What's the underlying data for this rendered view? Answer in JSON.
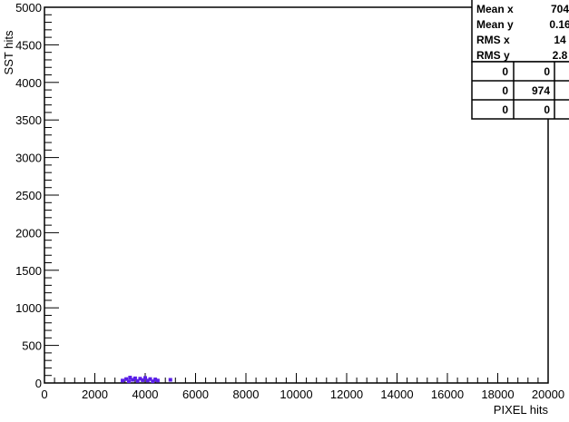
{
  "chart_data": {
    "type": "scatter",
    "xlabel": "PIXEL hits",
    "ylabel": "SST hits",
    "xlim": [
      0,
      20000
    ],
    "ylim": [
      0,
      5000
    ],
    "x_ticks": [
      "0",
      "2000",
      "4000",
      "6000",
      "8000",
      "10000",
      "12000",
      "14000",
      "16000",
      "18000",
      "20000"
    ],
    "y_ticks": [
      "0",
      "500",
      "1000",
      "1500",
      "2000",
      "2500",
      "3000",
      "3500",
      "4000",
      "4500",
      "5000"
    ],
    "points": [
      {
        "x": 3100,
        "y": 20
      },
      {
        "x": 3250,
        "y": 40
      },
      {
        "x": 3350,
        "y": 10
      },
      {
        "x": 3400,
        "y": 60
      },
      {
        "x": 3500,
        "y": 30
      },
      {
        "x": 3600,
        "y": 50
      },
      {
        "x": 3700,
        "y": 15
      },
      {
        "x": 3800,
        "y": 45
      },
      {
        "x": 3900,
        "y": 25
      },
      {
        "x": 4000,
        "y": 55
      },
      {
        "x": 4100,
        "y": 20
      },
      {
        "x": 4200,
        "y": 40
      },
      {
        "x": 4300,
        "y": 10
      },
      {
        "x": 4400,
        "y": 35
      },
      {
        "x": 4500,
        "y": 20
      },
      {
        "x": 5000,
        "y": 30
      }
    ],
    "point_color": "#5a1ee8",
    "stats": {
      "rows": [
        {
          "label": "Mean x",
          "value": "704"
        },
        {
          "label": "Mean y",
          "value": "0.16"
        },
        {
          "label": "RMS x",
          "value": "14"
        },
        {
          "label": "RMS y",
          "value": "2.8"
        }
      ],
      "grid": [
        [
          "0",
          "0",
          ""
        ],
        [
          "0",
          "974",
          ""
        ],
        [
          "0",
          "0",
          ""
        ]
      ]
    }
  }
}
